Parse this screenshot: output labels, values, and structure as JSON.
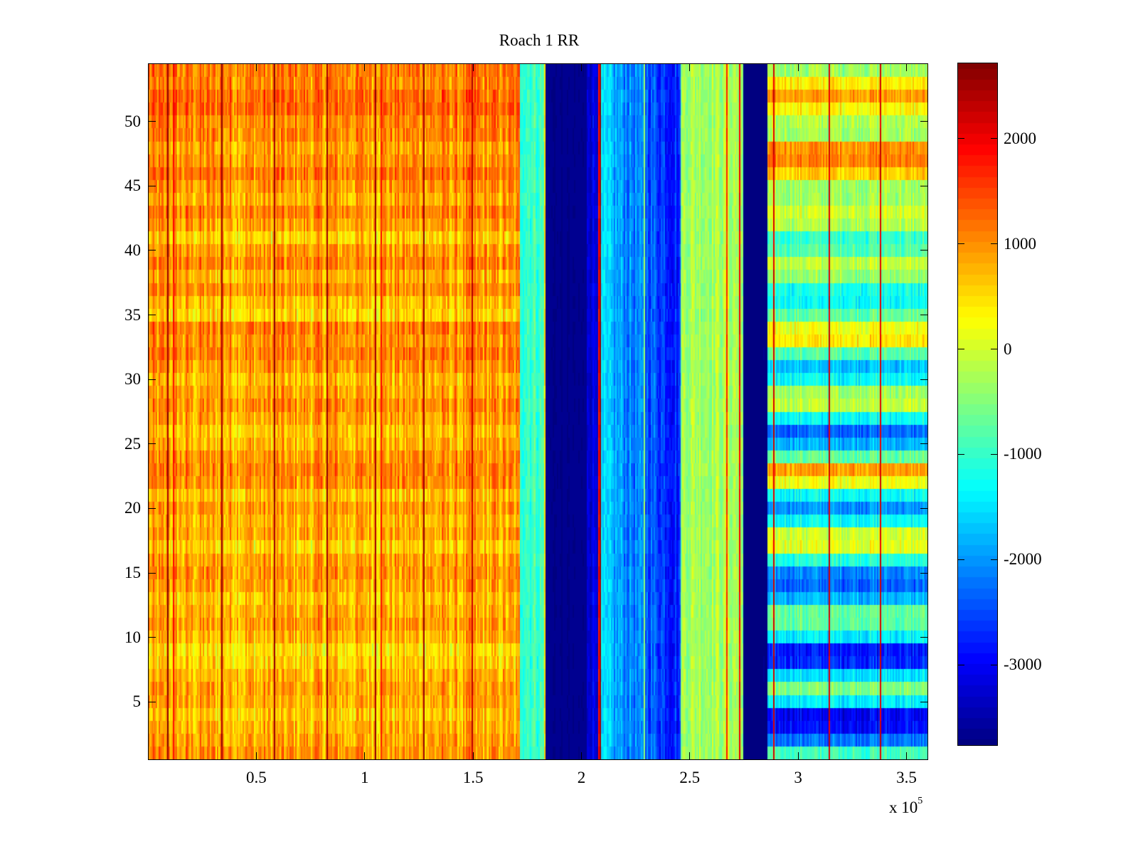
{
  "chart_data": {
    "type": "heatmap",
    "title": "Roach 1 RR",
    "xlabel": "",
    "ylabel": "",
    "x_multiplier_label": "x 10",
    "x_multiplier_exponent": "5",
    "xlim": [
      0.0,
      3.6
    ],
    "ylim": [
      0.5,
      54.5
    ],
    "n_rows": 54,
    "xticks": [
      0.5,
      1,
      1.5,
      2,
      2.5,
      3,
      3.5
    ],
    "xtick_labels": [
      "0.5",
      "1",
      "1.5",
      "2",
      "2.5",
      "3",
      "3.5"
    ],
    "yticks": [
      5,
      10,
      15,
      20,
      25,
      30,
      35,
      40,
      45,
      50
    ],
    "ytick_labels": [
      "5",
      "10",
      "15",
      "20",
      "25",
      "30",
      "35",
      "40",
      "45",
      "50"
    ],
    "colorbar": {
      "colormap": "jet",
      "levels": 64,
      "range": [
        -3764,
        2716
      ],
      "ticks": [
        2000,
        1000,
        0,
        -1000,
        -2000,
        -3000
      ],
      "tick_labels": [
        "2000",
        "1000",
        "0",
        "-1000",
        "-2000",
        "-3000"
      ]
    },
    "regions": [
      {
        "name": "left-high",
        "x": [
          0.0,
          1.713
        ],
        "base": 750,
        "row_profile": "left",
        "noise": 700
      },
      {
        "name": "transition-green",
        "x": [
          1.713,
          1.825
        ],
        "base": -900,
        "row_profile": "none",
        "noise": 500
      },
      {
        "name": "dark-blue-1",
        "x": [
          1.841,
          2.025
        ],
        "base": -3700,
        "row_profile": "none",
        "noise": 60
      },
      {
        "name": "blue-edge",
        "x": [
          2.025,
          2.075
        ],
        "base": -3100,
        "row_profile": "none",
        "noise": 400
      },
      {
        "name": "cyan-blue",
        "x": [
          2.097,
          2.461
        ],
        "base": -1700,
        "ramp": -1100,
        "row_profile": "none",
        "noise": 600
      },
      {
        "name": "yellow-green",
        "x": [
          2.461,
          2.75
        ],
        "base": -250,
        "row_profile": "none",
        "noise": 500
      },
      {
        "name": "dark-blue-2",
        "x": [
          2.75,
          2.862
        ],
        "base": -3750,
        "row_profile": "none",
        "noise": 40
      },
      {
        "name": "right-banded",
        "x": [
          2.862,
          3.6
        ],
        "base": 0,
        "row_profile": "right",
        "noise": 450
      }
    ],
    "vertical_lines": [
      {
        "x": 0.089,
        "value": 2700
      },
      {
        "x": 0.112,
        "value": 2000
      },
      {
        "x": 0.338,
        "value": 2650
      },
      {
        "x": 0.581,
        "value": 2650
      },
      {
        "x": 0.824,
        "value": 2650
      },
      {
        "x": 1.047,
        "value": 2650
      },
      {
        "x": 1.073,
        "value": 1900
      },
      {
        "x": 1.27,
        "value": 2650
      },
      {
        "x": 1.497,
        "value": 2400
      },
      {
        "x": 1.833,
        "value": 700
      },
      {
        "x": 2.078,
        "value": 2000
      },
      {
        "x": 2.088,
        "value": 2700
      },
      {
        "x": 2.29,
        "value": -300
      },
      {
        "x": 2.671,
        "value": 1800
      },
      {
        "x": 2.734,
        "value": 2100
      },
      {
        "x": 2.888,
        "value": 2300
      },
      {
        "x": 3.144,
        "value": 2300
      },
      {
        "x": 3.38,
        "value": 2300
      }
    ],
    "row_profiles": {
      "left": [
        200,
        100,
        0,
        -150,
        50,
        100,
        0,
        -200,
        -300,
        0,
        150,
        50,
        -100,
        100,
        200,
        100,
        -200,
        100,
        0,
        150,
        -100,
        250,
        300,
        200,
        0,
        -100,
        100,
        250,
        100,
        -50,
        200,
        350,
        200,
        350,
        -250,
        -100,
        250,
        0,
        300,
        150,
        -200,
        100,
        300,
        50,
        200,
        400,
        200,
        100,
        300,
        300,
        500,
        450,
        300,
        350
      ],
      "right": [
        -900,
        -2200,
        -2900,
        -3000,
        -1400,
        -500,
        -1500,
        -2700,
        -2800,
        -1400,
        -700,
        -700,
        -1800,
        -2300,
        -2100,
        -1100,
        100,
        0,
        -1300,
        -2000,
        -1300,
        200,
        900,
        -700,
        -1800,
        -2300,
        -1300,
        -100,
        -300,
        -1300,
        -1700,
        -800,
        400,
        200,
        -700,
        -1300,
        -1200,
        -400,
        -100,
        -800,
        -1000,
        -200,
        0,
        -300,
        -300,
        600,
        1100,
        1000,
        -300,
        -200,
        300,
        900,
        400,
        -300
      ]
    }
  }
}
